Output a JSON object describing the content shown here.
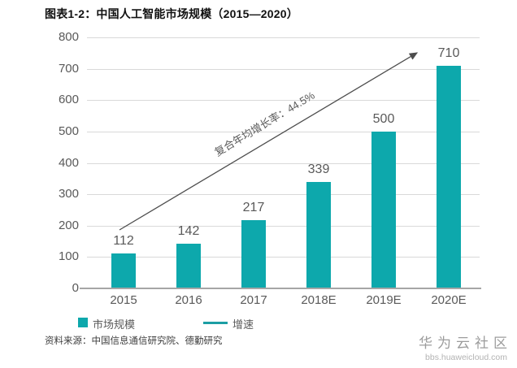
{
  "title": "图表1-2：中国人工智能市场规模（2015—2020）",
  "chart_data": {
    "type": "bar",
    "title": "图表1-2：中国人工智能市场规模（2015—2020）",
    "categories": [
      "2015",
      "2016",
      "2017",
      "2018E",
      "2019E",
      "2020E"
    ],
    "series": [
      {
        "name": "市场规模",
        "type": "bar",
        "values": [
          112,
          142,
          217,
          339,
          500,
          710
        ]
      },
      {
        "name": "增速",
        "type": "line",
        "shown_as": "trend-arrow"
      }
    ],
    "annotation": "复合年均增长率：44.5%",
    "ylim": [
      0,
      800
    ],
    "ytick_interval": 100,
    "yticks": [
      0,
      100,
      200,
      300,
      400,
      500,
      600,
      700,
      800
    ],
    "grid": true,
    "legend_position": "bottom"
  },
  "legend": {
    "market_label": "市场规模",
    "growth_label": "增速"
  },
  "source": "资料来源：中国信息通信研究院、德勤研究",
  "watermark": {
    "name": "华为云社区",
    "url": "bbs.huaweicloud.com"
  },
  "colors": {
    "bar": "#0da8ac",
    "legend_line": "#1c9ea4",
    "grid": "#d9d9d9",
    "axis": "#a6a6a6",
    "label_text": "#595959",
    "arrow": "#4d4d4d"
  }
}
